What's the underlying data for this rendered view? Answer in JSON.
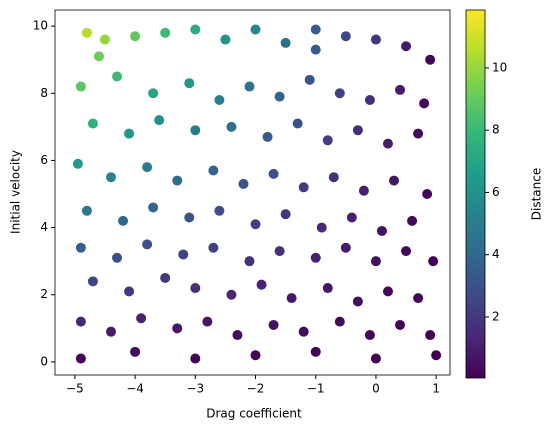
{
  "chart_data": {
    "type": "scatter",
    "xlabel": "Drag coefficient",
    "ylabel": "Initial velocity",
    "colorbar_label": "Distance",
    "colormap": "viridis",
    "xlim": [
      -5.33,
      1.23
    ],
    "ylim": [
      -0.39,
      10.48
    ],
    "clim": [
      0.04,
      11.86
    ],
    "xticks": [
      {
        "value": -5,
        "label": "−5"
      },
      {
        "value": -4,
        "label": "−4"
      },
      {
        "value": -3,
        "label": "−3"
      },
      {
        "value": -2,
        "label": "−2"
      },
      {
        "value": -1,
        "label": "−1"
      },
      0,
      1
    ],
    "yticks": [
      0,
      2,
      4,
      6,
      8,
      10
    ],
    "cticks": [
      2,
      4,
      6,
      8,
      10
    ],
    "x": [
      -4.8,
      -4.5,
      -4.0,
      -3.5,
      -3.0,
      -2.5,
      -2.0,
      -1.5,
      -1.0,
      -0.5,
      0.0,
      0.5,
      0.9,
      -4.9,
      -4.3,
      -3.7,
      -3.1,
      -2.6,
      -2.1,
      -1.6,
      -1.1,
      -0.6,
      -0.1,
      0.4,
      0.8,
      -4.7,
      -4.1,
      -3.6,
      -3.0,
      -2.4,
      -1.8,
      -1.3,
      -0.8,
      -0.3,
      0.2,
      0.7,
      -4.95,
      -4.4,
      -3.8,
      -3.3,
      -2.7,
      -2.2,
      -1.7,
      -1.2,
      -0.7,
      -0.2,
      0.3,
      0.85,
      -4.8,
      -4.2,
      -3.7,
      -3.1,
      -2.6,
      -2.0,
      -1.5,
      -0.9,
      -0.4,
      0.1,
      0.6,
      -4.9,
      -4.3,
      -3.8,
      -3.2,
      -2.7,
      -2.1,
      -1.6,
      -1.0,
      -0.5,
      0.0,
      0.5,
      0.95,
      -4.7,
      -4.1,
      -3.5,
      -3.0,
      -2.4,
      -1.9,
      -1.4,
      -0.8,
      -0.3,
      0.2,
      0.7,
      -4.9,
      -4.4,
      -3.9,
      -3.3,
      -2.8,
      -2.3,
      -1.7,
      -1.2,
      -0.6,
      -0.1,
      0.4,
      0.9,
      -4.9,
      -4.0,
      -3.0,
      -2.0,
      -1.0,
      0.0,
      1.0,
      -1.0,
      -4.6
    ],
    "y": [
      9.8,
      9.6,
      9.7,
      9.8,
      9.9,
      9.6,
      9.9,
      9.5,
      9.3,
      9.7,
      9.6,
      9.4,
      9.0,
      8.2,
      8.5,
      8.0,
      8.3,
      7.8,
      8.2,
      7.9,
      8.4,
      8.0,
      7.8,
      8.1,
      7.7,
      7.1,
      6.8,
      7.2,
      6.9,
      7.0,
      6.7,
      7.1,
      6.6,
      6.9,
      6.5,
      6.8,
      5.9,
      5.5,
      5.8,
      5.4,
      5.7,
      5.3,
      5.6,
      5.2,
      5.5,
      5.1,
      5.4,
      5.0,
      4.5,
      4.2,
      4.6,
      4.3,
      4.5,
      4.1,
      4.4,
      4.0,
      4.3,
      3.9,
      4.2,
      3.4,
      3.1,
      3.5,
      3.2,
      3.4,
      3.0,
      3.3,
      3.1,
      3.4,
      3.0,
      3.3,
      3.0,
      2.4,
      2.1,
      2.5,
      2.2,
      2.0,
      2.3,
      1.9,
      2.2,
      1.8,
      2.1,
      1.9,
      1.2,
      0.9,
      1.3,
      1.0,
      1.2,
      0.8,
      1.1,
      0.9,
      1.2,
      0.8,
      1.1,
      0.8,
      0.1,
      0.3,
      0.1,
      0.2,
      0.3,
      0.1,
      0.2,
      9.9,
      9.1
    ],
    "c": [
      10.6,
      10,
      8.9,
      8.1,
      7.3,
      6.2,
      5.5,
      4.4,
      3.4,
      2.7,
      1.8,
      0.9,
      0.2,
      8.8,
      8.1,
      6.9,
      6.3,
      5.3,
      4.7,
      3.8,
      3.2,
      2.3,
      1.6,
      0.9,
      0.3,
      7.5,
      6.3,
      6.0,
      5.0,
      4.4,
      3.5,
      3.0,
      2.2,
      1.6,
      1.0,
      0.4,
      6.4,
      5.4,
      5.0,
      4.2,
      3.8,
      3.1,
      2.8,
      2.1,
      1.7,
      1.1,
      0.7,
      0.15,
      4.8,
      4.0,
      3.9,
      3.2,
      2.9,
      2.3,
      2.0,
      1.4,
      1.1,
      0.6,
      0.3,
      3.6,
      2.9,
      2.9,
      2.4,
      2.3,
      1.7,
      1.6,
      1.1,
      0.9,
      0.55,
      0.3,
      0.1,
      2.5,
      2.0,
      2.1,
      1.6,
      1.3,
      1.2,
      0.85,
      0.7,
      0.45,
      0.3,
      0.1,
      1.3,
      0.9,
      1.2,
      0.8,
      0.8,
      0.5,
      0.55,
      0.4,
      0.35,
      0.2,
      0.15,
      0.05,
      0.1,
      0.3,
      0.1,
      0.15,
      0.1,
      0.05,
      0.05,
      3.5,
      9.2
    ]
  }
}
